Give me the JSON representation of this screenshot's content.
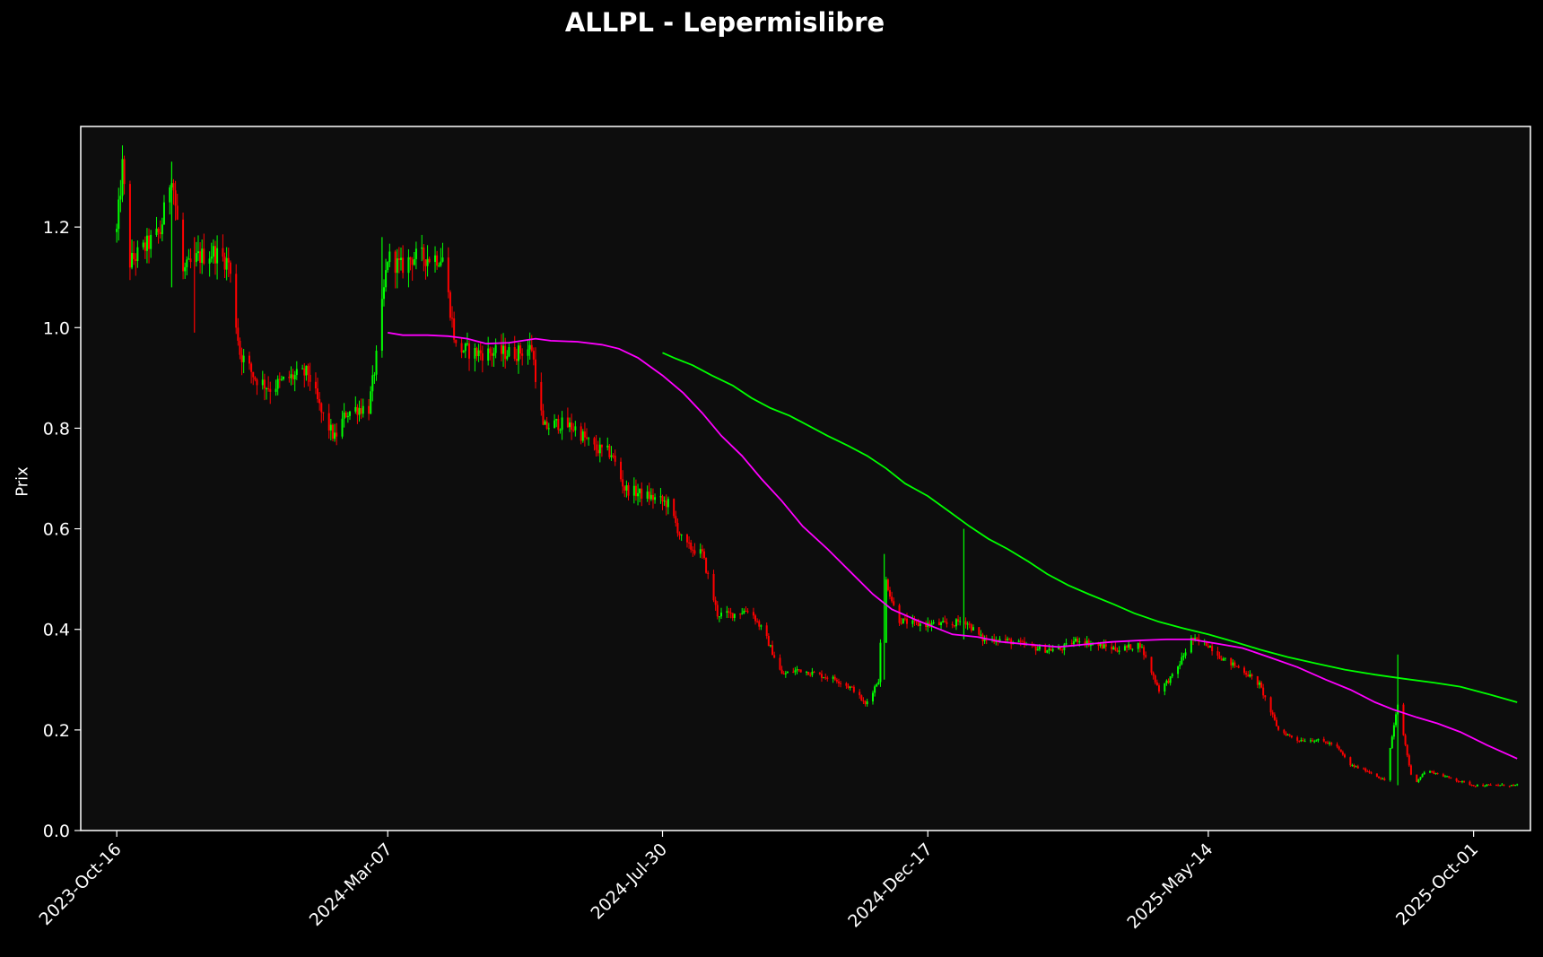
{
  "chart_data": {
    "type": "candlestick",
    "title": "ALLPL - Lepermislibre",
    "xlabel": "",
    "ylabel": "Prix",
    "xlim": [
      "2023-09-27",
      "2025-10-31"
    ],
    "ylim": [
      0.0,
      1.4
    ],
    "yticks": [
      0.0,
      0.2,
      0.4,
      0.6,
      0.8,
      1.0,
      1.2
    ],
    "ytick_labels": [
      "0.0",
      "0.2",
      "0.4",
      "0.6",
      "0.8",
      "1.0",
      "1.2"
    ],
    "xticks": [
      "2023-10-16",
      "2024-03-07",
      "2024-07-30",
      "2024-12-17",
      "2025-05-14",
      "2025-10-01"
    ],
    "xtick_labels": [
      "2023-Oct-16",
      "2024-Mar-07",
      "2024-Jul-30",
      "2024-Dec-17",
      "2025-May-14",
      "2025-Oct-01"
    ],
    "grid": false,
    "colors": {
      "background": "#000000",
      "plot_background": "#0d0d0d",
      "up": "#00ff00",
      "down": "#ff0000",
      "ma_fast": "#ff00ff",
      "ma_slow": "#00ff00",
      "frame": "#ffffff",
      "text": "#ffffff"
    },
    "price_path": [
      [
        "2023-10-16",
        1.19
      ],
      [
        "2023-10-19",
        1.32
      ],
      [
        "2023-10-23",
        1.13
      ],
      [
        "2023-10-31",
        1.16
      ],
      [
        "2023-11-08",
        1.19
      ],
      [
        "2023-11-14",
        1.31
      ],
      [
        "2023-11-20",
        1.11
      ],
      [
        "2023-11-28",
        1.14
      ],
      [
        "2023-12-06",
        1.15
      ],
      [
        "2023-12-14",
        1.13
      ],
      [
        "2023-12-20",
        0.95
      ],
      [
        "2023-12-28",
        0.9
      ],
      [
        "2024-01-05",
        0.88
      ],
      [
        "2024-01-15",
        0.9
      ],
      [
        "2024-01-25",
        0.91
      ],
      [
        "2024-02-01",
        0.83
      ],
      [
        "2024-02-08",
        0.78
      ],
      [
        "2024-02-14",
        0.83
      ],
      [
        "2024-02-20",
        0.84
      ],
      [
        "2024-02-26",
        0.84
      ],
      [
        "2024-03-01",
        0.94
      ],
      [
        "2024-03-07",
        1.14
      ],
      [
        "2024-03-14",
        1.12
      ],
      [
        "2024-03-20",
        1.14
      ],
      [
        "2024-03-28",
        1.14
      ],
      [
        "2024-04-05",
        1.14
      ],
      [
        "2024-04-12",
        0.96
      ],
      [
        "2024-04-22",
        0.95
      ],
      [
        "2024-05-02",
        0.95
      ],
      [
        "2024-05-14",
        0.95
      ],
      [
        "2024-05-22",
        0.96
      ],
      [
        "2024-05-28",
        0.8
      ],
      [
        "2024-06-05",
        0.81
      ],
      [
        "2024-06-14",
        0.8
      ],
      [
        "2024-06-24",
        0.76
      ],
      [
        "2024-07-03",
        0.75
      ],
      [
        "2024-07-10",
        0.68
      ],
      [
        "2024-07-18",
        0.67
      ],
      [
        "2024-07-26",
        0.66
      ],
      [
        "2024-08-02",
        0.65
      ],
      [
        "2024-08-10",
        0.57
      ],
      [
        "2024-08-20",
        0.55
      ],
      [
        "2024-08-28",
        0.43
      ],
      [
        "2024-09-05",
        0.43
      ],
      [
        "2024-09-14",
        0.44
      ],
      [
        "2024-09-22",
        0.39
      ],
      [
        "2024-10-01",
        0.31
      ],
      [
        "2024-10-10",
        0.32
      ],
      [
        "2024-10-20",
        0.31
      ],
      [
        "2024-10-30",
        0.3
      ],
      [
        "2024-11-08",
        0.28
      ],
      [
        "2024-11-14",
        0.25
      ],
      [
        "2024-11-21",
        0.3
      ],
      [
        "2024-11-24",
        0.51
      ],
      [
        "2024-12-01",
        0.42
      ],
      [
        "2024-12-10",
        0.41
      ],
      [
        "2024-12-20",
        0.41
      ],
      [
        "2024-12-30",
        0.41
      ],
      [
        "2025-01-05",
        0.42
      ],
      [
        "2025-01-15",
        0.38
      ],
      [
        "2025-01-25",
        0.38
      ],
      [
        "2025-02-05",
        0.37
      ],
      [
        "2025-02-15",
        0.36
      ],
      [
        "2025-02-25",
        0.36
      ],
      [
        "2025-03-06",
        0.38
      ],
      [
        "2025-03-14",
        0.37
      ],
      [
        "2025-03-28",
        0.36
      ],
      [
        "2025-04-08",
        0.37
      ],
      [
        "2025-04-18",
        0.28
      ],
      [
        "2025-04-26",
        0.31
      ],
      [
        "2025-05-05",
        0.38
      ],
      [
        "2025-05-14",
        0.37
      ],
      [
        "2025-05-22",
        0.34
      ],
      [
        "2025-06-01",
        0.32
      ],
      [
        "2025-06-10",
        0.29
      ],
      [
        "2025-06-20",
        0.2
      ],
      [
        "2025-06-30",
        0.18
      ],
      [
        "2025-07-10",
        0.18
      ],
      [
        "2025-07-20",
        0.17
      ],
      [
        "2025-07-28",
        0.13
      ],
      [
        "2025-08-05",
        0.12
      ],
      [
        "2025-08-15",
        0.1
      ],
      [
        "2025-08-22",
        0.25
      ],
      [
        "2025-08-30",
        0.09
      ],
      [
        "2025-09-06",
        0.12
      ],
      [
        "2025-09-14",
        0.11
      ],
      [
        "2025-09-22",
        0.1
      ],
      [
        "2025-10-01",
        0.09
      ],
      [
        "2025-10-10",
        0.09
      ],
      [
        "2025-10-20",
        0.09
      ],
      [
        "2025-10-24",
        0.09
      ]
    ],
    "series": [
      {
        "color": "#ff00ff",
        "points": [
          [
            "2024-03-07",
            0.99
          ],
          [
            "2024-03-15",
            0.985
          ],
          [
            "2024-03-28",
            0.985
          ],
          [
            "2024-04-08",
            0.983
          ],
          [
            "2024-04-18",
            0.978
          ],
          [
            "2024-04-28",
            0.968
          ],
          [
            "2024-05-10",
            0.97
          ],
          [
            "2024-05-24",
            0.978
          ],
          [
            "2024-06-01",
            0.974
          ],
          [
            "2024-06-15",
            0.972
          ],
          [
            "2024-06-28",
            0.966
          ],
          [
            "2024-07-07",
            0.958
          ],
          [
            "2024-07-17",
            0.94
          ],
          [
            "2024-07-30",
            0.905
          ],
          [
            "2024-08-10",
            0.87
          ],
          [
            "2024-08-20",
            0.83
          ],
          [
            "2024-08-30",
            0.785
          ],
          [
            "2024-09-10",
            0.745
          ],
          [
            "2024-09-20",
            0.7
          ],
          [
            "2024-10-01",
            0.655
          ],
          [
            "2024-10-12",
            0.605
          ],
          [
            "2024-10-25",
            0.56
          ],
          [
            "2024-11-06",
            0.515
          ],
          [
            "2024-11-18",
            0.47
          ],
          [
            "2024-11-28",
            0.44
          ],
          [
            "2024-12-10",
            0.42
          ],
          [
            "2024-12-20",
            0.405
          ],
          [
            "2024-12-30",
            0.39
          ],
          [
            "2025-01-12",
            0.385
          ],
          [
            "2025-01-25",
            0.375
          ],
          [
            "2025-02-08",
            0.37
          ],
          [
            "2025-02-24",
            0.365
          ],
          [
            "2025-03-10",
            0.37
          ],
          [
            "2025-03-24",
            0.375
          ],
          [
            "2025-04-08",
            0.378
          ],
          [
            "2025-04-22",
            0.38
          ],
          [
            "2025-05-05",
            0.38
          ],
          [
            "2025-05-18",
            0.372
          ],
          [
            "2025-06-01",
            0.363
          ],
          [
            "2025-06-15",
            0.345
          ],
          [
            "2025-06-30",
            0.325
          ],
          [
            "2025-07-15",
            0.3
          ],
          [
            "2025-07-28",
            0.28
          ],
          [
            "2025-08-10",
            0.255
          ],
          [
            "2025-08-20",
            0.24
          ],
          [
            "2025-09-01",
            0.225
          ],
          [
            "2025-09-12",
            0.213
          ],
          [
            "2025-09-24",
            0.196
          ],
          [
            "2025-10-08",
            0.17
          ],
          [
            "2025-10-24",
            0.143
          ]
        ]
      },
      {
        "color": "#00ff00",
        "points": [
          [
            "2024-07-30",
            0.95
          ],
          [
            "2024-08-05",
            0.94
          ],
          [
            "2024-08-15",
            0.925
          ],
          [
            "2024-08-25",
            0.905
          ],
          [
            "2024-09-05",
            0.885
          ],
          [
            "2024-09-15",
            0.86
          ],
          [
            "2024-09-25",
            0.84
          ],
          [
            "2024-10-05",
            0.825
          ],
          [
            "2024-10-15",
            0.805
          ],
          [
            "2024-10-25",
            0.785
          ],
          [
            "2024-11-05",
            0.765
          ],
          [
            "2024-11-15",
            0.745
          ],
          [
            "2024-11-25",
            0.72
          ],
          [
            "2024-12-05",
            0.69
          ],
          [
            "2024-12-17",
            0.665
          ],
          [
            "2024-12-28",
            0.635
          ],
          [
            "2025-01-08",
            0.605
          ],
          [
            "2025-01-18",
            0.58
          ],
          [
            "2025-01-28",
            0.56
          ],
          [
            "2025-02-08",
            0.535
          ],
          [
            "2025-02-18",
            0.51
          ],
          [
            "2025-03-01",
            0.488
          ],
          [
            "2025-03-12",
            0.47
          ],
          [
            "2025-03-25",
            0.45
          ],
          [
            "2025-04-05",
            0.432
          ],
          [
            "2025-04-18",
            0.415
          ],
          [
            "2025-05-01",
            0.402
          ],
          [
            "2025-05-14",
            0.39
          ],
          [
            "2025-05-28",
            0.375
          ],
          [
            "2025-06-10",
            0.36
          ],
          [
            "2025-06-25",
            0.345
          ],
          [
            "2025-07-10",
            0.332
          ],
          [
            "2025-07-25",
            0.32
          ],
          [
            "2025-08-10",
            0.31
          ],
          [
            "2025-08-25",
            0.302
          ],
          [
            "2025-09-10",
            0.294
          ],
          [
            "2025-09-24",
            0.286
          ],
          [
            "2025-10-10",
            0.27
          ],
          [
            "2025-10-24",
            0.255
          ]
        ]
      }
    ]
  }
}
